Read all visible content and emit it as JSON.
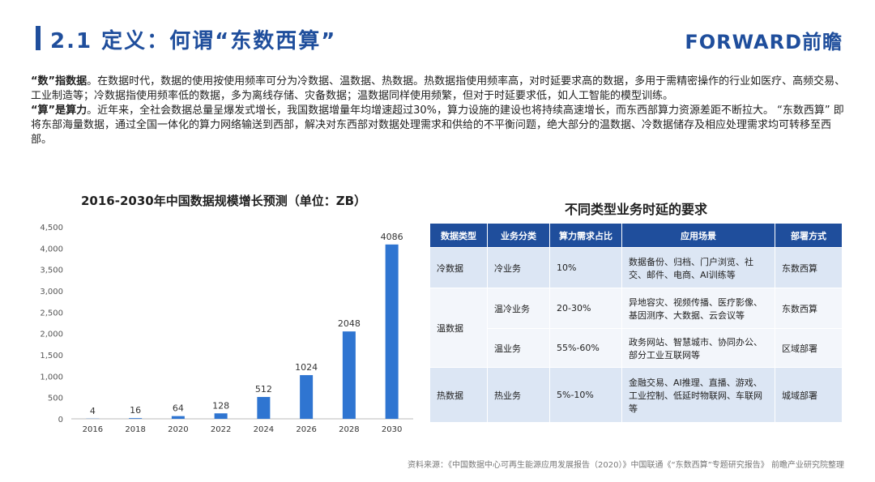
{
  "header": {
    "title": "2.1 定义：何谓“东数西算”",
    "logo": "FORWARD前瞻"
  },
  "intro": {
    "p1_bold": "“数”指数据",
    "p1_text": "。在数据时代，数据的使用按使用频率可分为冷数据、温数据、热数据。热数据指使用频率高，对时延要求高的数据，多用于需精密操作的行业如医疗、高频交易、工业制造等；冷数据指使用频率低的数据，多为离线存储、灾备数据；温数据同样使用频繁，但对于时延要求低，如人工智能的模型训练。",
    "p2_bold": "“算”是算力",
    "p2_text": "。近年来，全社会数据总量呈爆发式增长，我国数据增量年均增速超过30%，算力设施的建设也将持续高速增长，而东西部算力资源差距不断拉大。 “东数西算” 即将东部海量数据，通过全国一体化的算力网络输送到西部，解决对东西部对数据处理需求和供给的不平衡问题，绝大部分的温数据、冷数据储存及相应处理需求均可转移至西部。"
  },
  "chart_data": {
    "type": "bar",
    "title": "2016-2030年中国数据规模增长预测（单位：ZB）",
    "categories": [
      "2016",
      "2018",
      "2020",
      "2022",
      "2024",
      "2026",
      "2028",
      "2030"
    ],
    "values": [
      4,
      16,
      64,
      128,
      512,
      1024,
      2048,
      4086
    ],
    "yticks": [
      "0",
      "500",
      "1,000",
      "1,500",
      "2,000",
      "2,500",
      "3,000",
      "3,500",
      "4,000",
      "4,500"
    ],
    "ylim": [
      0,
      4500
    ],
    "bar_color": "#2f75d1",
    "grid": false
  },
  "table": {
    "title": "不同类型业务时延的要求",
    "headers": [
      "数据类型",
      "业务分类",
      "算力需求占比",
      "应用场景",
      "部署方式"
    ],
    "rows": [
      {
        "type": "冷数据",
        "category": "冷业务",
        "share": "10%",
        "scene": "数据备份、归档、门户浏览、社交、邮件、电商、AI训练等",
        "deploy": "东数西算"
      },
      {
        "type": "温数据",
        "category": "温冷业务",
        "share": "20-30%",
        "scene": "异地容灾、视频传播、医疗影像、基因测序、大数据、云会议等",
        "deploy": "东数西算"
      },
      {
        "type": "",
        "category": "温业务",
        "share": "55%-60%",
        "scene": "政务网站、智慧城市、协同办公、部分工业互联网等",
        "deploy": "区域部署"
      },
      {
        "type": "热数据",
        "category": "热业务",
        "share": "5%-10%",
        "scene": "金融交易、AI推理、直播、游戏、工业控制、低延时物联网、车联网等",
        "deploy": "城域部署"
      }
    ]
  },
  "source": "资料来源：《中国数据中心可再生能源应用发展报告（2020）》中国联通《“东数西算”专题研究报告》 前瞻产业研究院整理",
  "colors": {
    "brand": "#1f4e9c",
    "header_bg": "#1f4e9c",
    "row_alt": "#dce6f4",
    "row_plain": "#f3f6fb"
  }
}
